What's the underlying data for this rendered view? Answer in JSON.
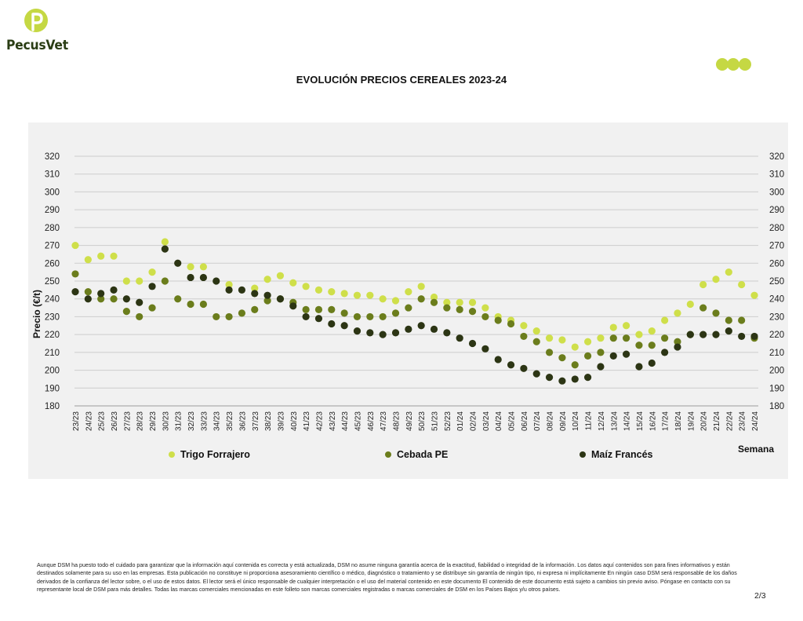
{
  "brand": {
    "name": "PecusVet",
    "logo_color": "#c5d843",
    "text_color": "#2a3d14"
  },
  "page_title": "EVOLUCIÓN PRECIOS CEREALES 2023-24",
  "chart_data": {
    "type": "scatter",
    "title": "EVOLUCIÓN PRECIOS CEREALES 2023-24",
    "xlabel": "Semana",
    "ylabel": "Precio (€/t)",
    "ylim": [
      180,
      320
    ],
    "yticks": [
      180,
      190,
      200,
      210,
      220,
      230,
      240,
      250,
      260,
      270,
      280,
      290,
      300,
      310,
      320
    ],
    "grid": true,
    "legend_position": "bottom",
    "categories": [
      "23/23",
      "24/23",
      "25/23",
      "26/23",
      "27/23",
      "28/23",
      "29/23",
      "30/23",
      "31/23",
      "32/23",
      "33/23",
      "34/23",
      "35/23",
      "36/23",
      "37/23",
      "38/23",
      "39/23",
      "40/23",
      "41/23",
      "42/23",
      "43/23",
      "44/23",
      "45/23",
      "46/23",
      "47/23",
      "48/23",
      "49/23",
      "50/23",
      "51/23",
      "52/23",
      "01/24",
      "02/24",
      "03/24",
      "04/24",
      "05/24",
      "06/24",
      "07/24",
      "08/24",
      "09/24",
      "10/24",
      "11/24",
      "12/24",
      "13/24",
      "14/24",
      "15/24",
      "16/24",
      "17/24",
      "18/24",
      "19/24",
      "20/24",
      "21/24",
      "22/24",
      "23/24",
      "24/24"
    ],
    "series": [
      {
        "name": "Trigo Forrajero",
        "color": "#cfdf4a",
        "values": [
          270,
          262,
          264,
          264,
          250,
          250,
          255,
          272,
          null,
          258,
          258,
          null,
          248,
          null,
          246,
          251,
          253,
          249,
          247,
          245,
          244,
          243,
          242,
          242,
          240,
          239,
          244,
          247,
          241,
          238,
          238,
          238,
          235,
          230,
          228,
          225,
          222,
          218,
          217,
          213,
          216,
          218,
          224,
          225,
          220,
          222,
          228,
          232,
          237,
          248,
          251,
          255,
          248,
          242
        ]
      },
      {
        "name": "Cebada PE",
        "color": "#6b7d1c",
        "values": [
          254,
          244,
          240,
          240,
          233,
          230,
          235,
          250,
          240,
          237,
          237,
          230,
          230,
          232,
          234,
          239,
          240,
          238,
          234,
          234,
          234,
          232,
          230,
          230,
          230,
          232,
          235,
          240,
          238,
          235,
          234,
          233,
          230,
          228,
          226,
          219,
          216,
          210,
          207,
          203,
          208,
          210,
          218,
          218,
          214,
          214,
          218,
          216,
          220,
          235,
          232,
          228,
          228,
          218
        ]
      },
      {
        "name": "Maíz Francés",
        "color": "#2c3514",
        "values": [
          244,
          240,
          243,
          245,
          240,
          238,
          247,
          268,
          260,
          252,
          252,
          250,
          245,
          245,
          243,
          242,
          240,
          236,
          230,
          229,
          226,
          225,
          222,
          221,
          220,
          221,
          223,
          225,
          223,
          221,
          218,
          215,
          212,
          206,
          203,
          201,
          198,
          196,
          194,
          195,
          196,
          202,
          208,
          209,
          202,
          204,
          210,
          213,
          220,
          220,
          220,
          222,
          219,
          219
        ]
      }
    ]
  },
  "disclaimer": "Aunque DSM ha puesto todo el cuidado para garantizar que la información aquí contenida es correcta y está actualizada, DSM no asume ninguna garantía acerca de la exactitud, fiabilidad o integridad de la información. Los datos aquí contenidos son para fines informativos y están destinados solamente para su uso en las empresas. Esta publicación no constituye ni proporciona asesoramiento científico o médico, diagnóstico o tratamiento y se distribuye sin garantía de ningún tipo, ni expresa ni implícitamente En ningún caso DSM será responsable de los daños derivados de la confianza del lector sobre, o el uso de estos datos. El lector será el único responsable de cualquier interpretación o el uso del material contenido en este documento El contenido de este documento está sujeto a cambios sin previo aviso. Póngase en contacto con su representante local de DSM para más detalles. Todas las marcas comerciales mencionadas en este folleto son marcas comerciales registradas o marcas comerciales de DSM en los Países Bajos y/u otros países.",
  "page_number": "2/3",
  "decor_dots_color": "#c5d843"
}
